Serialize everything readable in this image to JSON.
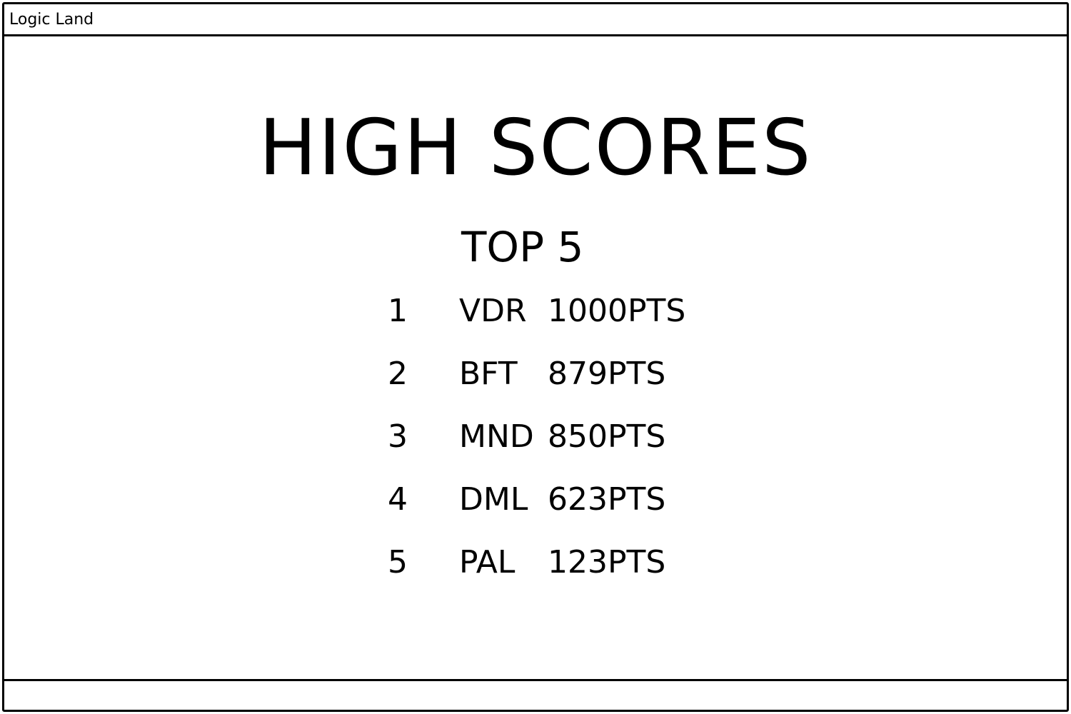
{
  "window": {
    "title": "Logic Land"
  },
  "main": {
    "heading": "HIGH SCORES",
    "subheading": "TOP 5",
    "scores": [
      {
        "rank": "1",
        "name": "VDR",
        "points": "1000PTS"
      },
      {
        "rank": "2",
        "name": "BFT",
        "points": "879PTS"
      },
      {
        "rank": "3",
        "name": "MND",
        "points": "850PTS"
      },
      {
        "rank": "4",
        "name": "DML",
        "points": "623PTS"
      },
      {
        "rank": "5",
        "name": "PAL",
        "points": "123PTS"
      }
    ]
  }
}
